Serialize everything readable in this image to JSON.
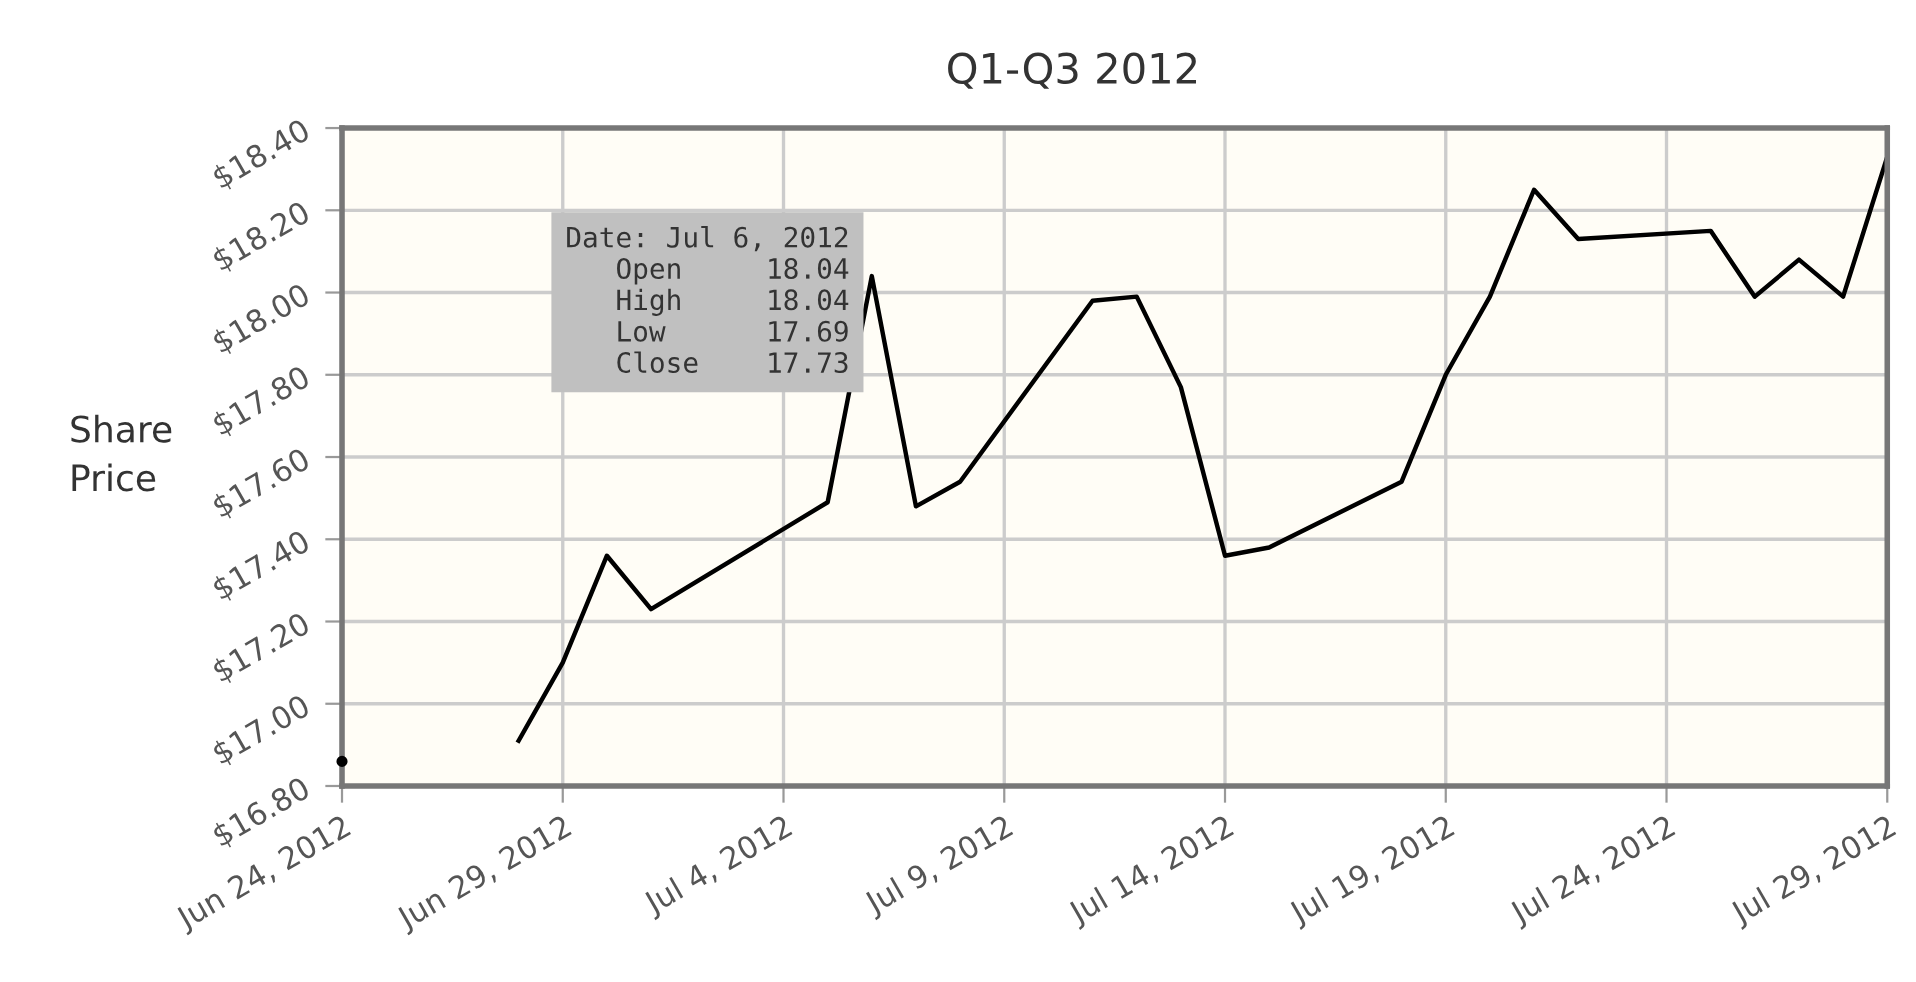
{
  "chart_data": {
    "type": "line",
    "title": "Q1-Q3 2012",
    "ylabel": "Share\nPrice",
    "x": [
      "2012-06-24",
      "2012-06-25",
      "2012-06-26",
      "2012-06-27",
      "2012-06-28",
      "2012-06-29",
      "2012-06-30",
      "2012-07-01",
      "2012-07-05",
      "2012-07-06",
      "2012-07-07",
      "2012-07-08",
      "2012-07-11",
      "2012-07-12",
      "2012-07-13",
      "2012-07-14",
      "2012-07-15",
      "2012-07-18",
      "2012-07-19",
      "2012-07-20",
      "2012-07-21",
      "2012-07-22",
      "2012-07-25",
      "2012-07-26",
      "2012-07-27",
      "2012-07-28",
      "2012-07-29"
    ],
    "series": [
      {
        "color": "#000000",
        "values": [
          16.86,
          null,
          null,
          null,
          16.91,
          17.1,
          17.36,
          17.23,
          17.49,
          18.04,
          17.48,
          17.54,
          17.98,
          17.99,
          17.77,
          17.36,
          17.38,
          17.54,
          17.8,
          17.99,
          18.25,
          18.13,
          18.15,
          17.99,
          18.08,
          17.99,
          18.33
        ]
      }
    ],
    "xlim": [
      "2012-06-24",
      "2012-07-29"
    ],
    "xticks": [
      {
        "value": "2012-06-24",
        "label": "Jun 24, 2012"
      },
      {
        "value": "2012-06-29",
        "label": "Jun 29, 2012"
      },
      {
        "value": "2012-07-04",
        "label": "Jul 4, 2012"
      },
      {
        "value": "2012-07-09",
        "label": "Jul 9, 2012"
      },
      {
        "value": "2012-07-14",
        "label": "Jul 14, 2012"
      },
      {
        "value": "2012-07-19",
        "label": "Jul 19, 2012"
      },
      {
        "value": "2012-07-24",
        "label": "Jul 24, 2012"
      },
      {
        "value": "2012-07-29",
        "label": "Jul 29, 2012"
      }
    ],
    "ylim": [
      16.8,
      18.4
    ],
    "yticks": [
      {
        "value": 16.8,
        "label": "$16.80"
      },
      {
        "value": 17.0,
        "label": "$17.00"
      },
      {
        "value": 17.2,
        "label": "$17.20"
      },
      {
        "value": 17.4,
        "label": "$17.40"
      },
      {
        "value": 17.6,
        "label": "$17.60"
      },
      {
        "value": 17.8,
        "label": "$17.80"
      },
      {
        "value": 18.0,
        "label": "$18.00"
      },
      {
        "value": 18.2,
        "label": "$18.20"
      },
      {
        "value": 18.4,
        "label": "$18.40"
      }
    ],
    "grid": true,
    "legend": false,
    "marker": "none",
    "line_style": "solid",
    "annotations": [
      {
        "text": "Date: Jul 6, 2012\nOpen     18.04\nHigh     18.04\nLow      17.69\nClose    17.73",
        "x": "2012-07-06",
        "y": 18.04
      }
    ]
  }
}
